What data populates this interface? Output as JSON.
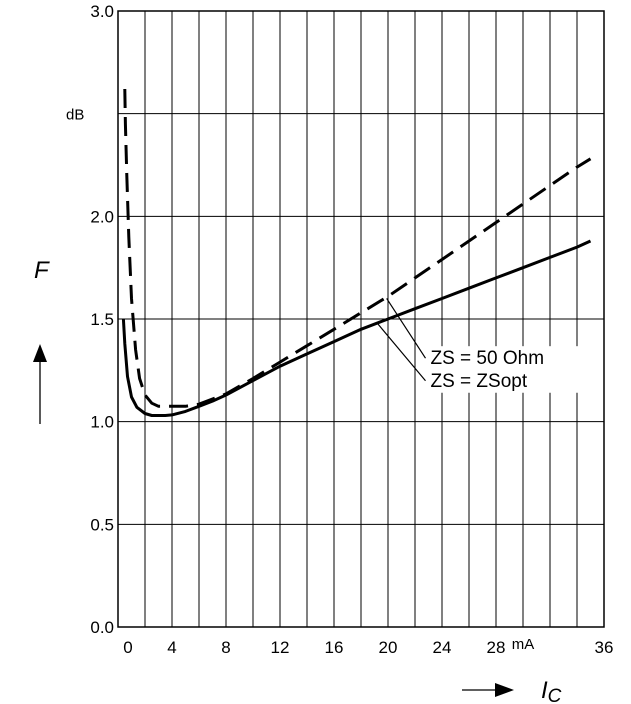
{
  "chart_data": {
    "type": "line",
    "title": "",
    "xlabel": "I",
    "xlabel_sub": "C",
    "xunit": "mA",
    "ylabel": "F",
    "yunit": "dB",
    "xlim": [
      0,
      36
    ],
    "ylim": [
      0,
      3.0
    ],
    "x_ticks": [
      {
        "value": 0,
        "label": "0"
      },
      {
        "value": 4,
        "label": "4"
      },
      {
        "value": 8,
        "label": "8"
      },
      {
        "value": 12,
        "label": "12"
      },
      {
        "value": 16,
        "label": "16"
      },
      {
        "value": 20,
        "label": "20"
      },
      {
        "value": 24,
        "label": "24"
      },
      {
        "value": 28,
        "label": "28"
      },
      {
        "value": 36,
        "label": "36"
      }
    ],
    "y_ticks": [
      {
        "value": 0,
        "label": "0.0"
      },
      {
        "value": 0.5,
        "label": "0.5"
      },
      {
        "value": 1.0,
        "label": "1.0"
      },
      {
        "value": 1.5,
        "label": "1.5"
      },
      {
        "value": 2.0,
        "label": "2.0"
      },
      {
        "value": 3.0,
        "label": "3.0"
      }
    ],
    "x_grid_step": 2,
    "y_grid_step": 0.5,
    "grid": true,
    "series": [
      {
        "name": "ZS = 50 Ohm",
        "style": "dashed",
        "x": [
          0.5,
          0.55,
          0.65,
          0.8,
          1.0,
          1.3,
          1.6,
          2.0,
          2.5,
          3.0,
          4.0,
          5.0,
          6.0,
          8.0,
          10.0,
          12.0,
          14.0,
          16.0,
          18.0,
          20.0,
          22.0,
          24.0,
          26.0,
          28.0,
          30.0,
          32.0,
          34.0,
          35.0
        ],
        "y": [
          2.62,
          2.45,
          2.2,
          1.9,
          1.6,
          1.35,
          1.21,
          1.13,
          1.09,
          1.075,
          1.075,
          1.075,
          1.085,
          1.135,
          1.21,
          1.29,
          1.37,
          1.45,
          1.53,
          1.61,
          1.7,
          1.79,
          1.88,
          1.97,
          2.06,
          2.15,
          2.24,
          2.28
        ]
      },
      {
        "name": "ZS = ZSopt",
        "style": "solid",
        "x": [
          0.4,
          0.5,
          0.7,
          1.0,
          1.4,
          2.0,
          2.5,
          3.0,
          3.5,
          4.0,
          5.0,
          6.0,
          7.0,
          8.0,
          10.0,
          12.0,
          14.0,
          16.0,
          18.0,
          20.0,
          22.0,
          24.0,
          26.0,
          28.0,
          30.0,
          32.0,
          34.0,
          35.0
        ],
        "y": [
          1.5,
          1.38,
          1.22,
          1.12,
          1.07,
          1.04,
          1.03,
          1.03,
          1.03,
          1.033,
          1.05,
          1.075,
          1.1,
          1.13,
          1.2,
          1.27,
          1.33,
          1.39,
          1.45,
          1.5,
          1.55,
          1.6,
          1.65,
          1.7,
          1.75,
          1.8,
          1.85,
          1.88
        ]
      }
    ],
    "annotations": [
      {
        "text": "ZS = 50 Ohm",
        "x": 23,
        "y": 1.28,
        "target_x": 19.9,
        "target_y": 1.6
      },
      {
        "text": "ZS = ZSopt",
        "x": 23,
        "y": 1.17,
        "target_x": 19.2,
        "target_y": 1.48
      }
    ],
    "legend": "none"
  }
}
